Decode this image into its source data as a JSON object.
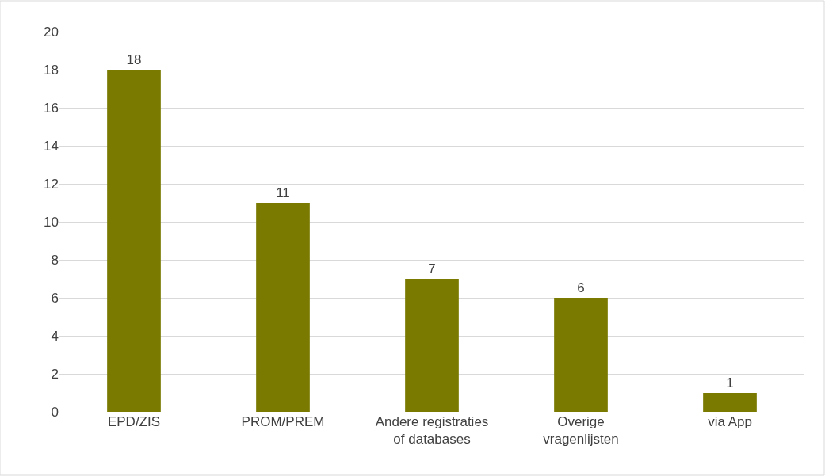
{
  "chart_data": {
    "type": "bar",
    "categories": [
      "EPD/ZIS",
      "PROM/PREM",
      "Andere registraties\nof databases",
      "Overige\nvragenlijsten",
      "via App"
    ],
    "values": [
      18,
      11,
      7,
      6,
      1
    ],
    "color": "#7a7a00",
    "ylim": [
      0,
      20
    ],
    "yticks": [
      0,
      2,
      4,
      6,
      8,
      10,
      12,
      14,
      16,
      18,
      20
    ],
    "grid": "y",
    "data_labels": true,
    "legend": false
  }
}
